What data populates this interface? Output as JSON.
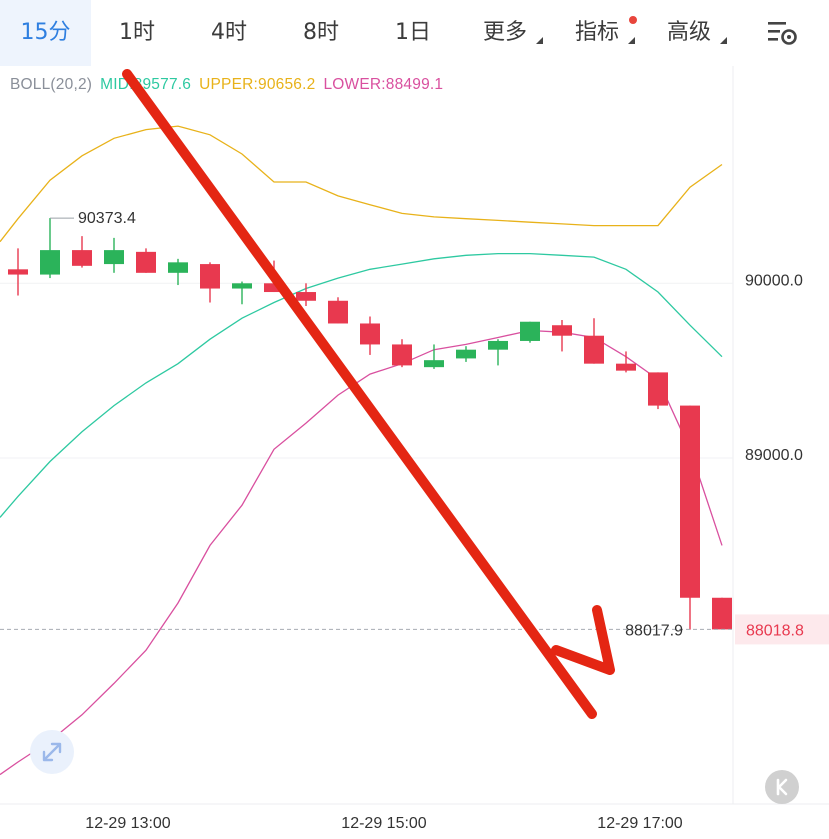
{
  "tabs": [
    {
      "label": "15分",
      "active": true
    },
    {
      "label": "1时"
    },
    {
      "label": "4时"
    },
    {
      "label": "8时"
    },
    {
      "label": "1日"
    },
    {
      "label": "更多",
      "dropdown": true
    },
    {
      "label": "指标",
      "dropdown": true,
      "badge": true
    },
    {
      "label": "高级",
      "dropdown": true
    }
  ],
  "boll": {
    "name": "BOLL(20,2)",
    "mid": "MID:89577.6",
    "upper": "UPPER:90656.2",
    "lower": "LOWER:88499.1"
  },
  "colors": {
    "up": "#2bb35a",
    "down": "#e8394f",
    "upper": "#e8b21a",
    "mid": "#2ec9a1",
    "lower": "#d9509f",
    "arrow": "#e42613",
    "accent": "#2f7fe0"
  },
  "chart_data": {
    "type": "candlestick",
    "y_axis_labels": [
      "90000.0",
      "89000.0"
    ],
    "y_axis_values": [
      90000,
      89000
    ],
    "x_axis_labels": [
      {
        "label": "12-29 13:00",
        "index": 3
      },
      {
        "label": "12-29 15:00",
        "index": 11
      },
      {
        "label": "12-29 17:00",
        "index": 19
      }
    ],
    "high_marker": {
      "index": 1,
      "price": 90373.4,
      "label": "90373.4"
    },
    "low_marker": {
      "index": 21,
      "price": 88017.9,
      "label": "88017.9"
    },
    "last_price": {
      "price": 88018.8,
      "label": "88018.8"
    },
    "candles": [
      {
        "o": 90080,
        "h": 90200,
        "l": 89930,
        "c": 90050
      },
      {
        "o": 90050,
        "h": 90373.4,
        "l": 90030,
        "c": 90190
      },
      {
        "o": 90190,
        "h": 90270,
        "l": 90090,
        "c": 90100
      },
      {
        "o": 90110,
        "h": 90260,
        "l": 90060,
        "c": 90190
      },
      {
        "o": 90180,
        "h": 90200,
        "l": 90060,
        "c": 90060
      },
      {
        "o": 90060,
        "h": 90140,
        "l": 89990,
        "c": 90120
      },
      {
        "o": 90110,
        "h": 90120,
        "l": 89890,
        "c": 89970
      },
      {
        "o": 89970,
        "h": 90010,
        "l": 89880,
        "c": 90000
      },
      {
        "o": 90000,
        "h": 90130,
        "l": 89950,
        "c": 89950
      },
      {
        "o": 89950,
        "h": 90000,
        "l": 89870,
        "c": 89900
      },
      {
        "o": 89900,
        "h": 89920,
        "l": 89770,
        "c": 89770
      },
      {
        "o": 89770,
        "h": 89810,
        "l": 89590,
        "c": 89650
      },
      {
        "o": 89650,
        "h": 89680,
        "l": 89520,
        "c": 89530
      },
      {
        "o": 89520,
        "h": 89650,
        "l": 89510,
        "c": 89560
      },
      {
        "o": 89570,
        "h": 89640,
        "l": 89550,
        "c": 89620
      },
      {
        "o": 89620,
        "h": 89680,
        "l": 89530,
        "c": 89670
      },
      {
        "o": 89670,
        "h": 89780,
        "l": 89660,
        "c": 89780
      },
      {
        "o": 89760,
        "h": 89790,
        "l": 89610,
        "c": 89700
      },
      {
        "o": 89700,
        "h": 89800,
        "l": 89540,
        "c": 89540
      },
      {
        "o": 89540,
        "h": 89610,
        "l": 89490,
        "c": 89500
      },
      {
        "o": 89490,
        "h": 89490,
        "l": 89280,
        "c": 89300
      },
      {
        "o": 89300,
        "h": 89300,
        "l": 88017.9,
        "c": 88200
      },
      {
        "o": 88200,
        "h": 88200,
        "l": 88018.8,
        "c": 88018.8
      }
    ],
    "upper": [
      90370,
      90590,
      90730,
      90830,
      90880,
      90900,
      90850,
      90740,
      90580,
      90580,
      90500,
      90450,
      90400,
      90380,
      90370,
      90360,
      90350,
      90340,
      90330,
      90330,
      90330,
      90550,
      90680
    ],
    "mid": [
      88780,
      88980,
      89150,
      89300,
      89430,
      89540,
      89680,
      89800,
      89890,
      89970,
      90030,
      90080,
      90110,
      90140,
      90160,
      90170,
      90170,
      90160,
      90150,
      90080,
      89950,
      89760,
      89580
    ],
    "lower": [
      87260,
      87380,
      87530,
      87710,
      87900,
      88170,
      88500,
      88730,
      89050,
      89200,
      89360,
      89480,
      89540,
      89620,
      89650,
      89690,
      89730,
      89720,
      89690,
      89580,
      89450,
      89050,
      88500
    ]
  }
}
